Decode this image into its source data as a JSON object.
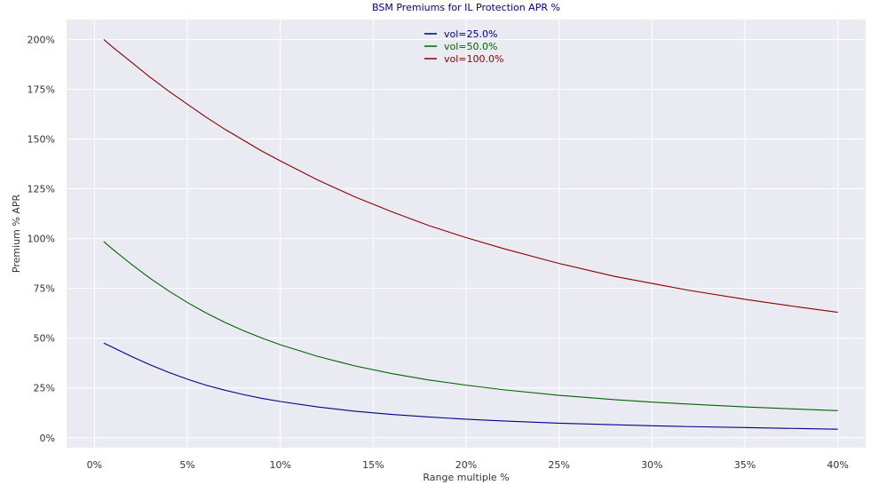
{
  "chart_data": {
    "type": "line",
    "title": "BSM Premiums for IL Protection APR %",
    "title_color": "#00008b",
    "xlabel": "Range multiple %",
    "ylabel": "Premium % APR",
    "xlim": [
      -1.5,
      41.5
    ],
    "ylim": [
      -5,
      210
    ],
    "xticks": [
      0,
      5,
      10,
      15,
      20,
      25,
      30,
      35,
      40
    ],
    "xtick_labels": [
      "0%",
      "5%",
      "10%",
      "15%",
      "20%",
      "25%",
      "30%",
      "35%",
      "40%"
    ],
    "yticks": [
      0,
      25,
      50,
      75,
      100,
      125,
      150,
      175,
      200
    ],
    "ytick_labels": [
      "0%",
      "25%",
      "50%",
      "75%",
      "100%",
      "125%",
      "150%",
      "175%",
      "200%"
    ],
    "grid": true,
    "background": "#eaeaf2",
    "legend_position": "top-center",
    "x": [
      0.5,
      1,
      2,
      3,
      4,
      5,
      6,
      7,
      8,
      9,
      10,
      12,
      14,
      16,
      18,
      20,
      22,
      25,
      28,
      30,
      32,
      35,
      38,
      40
    ],
    "series": [
      {
        "name": "vol=25.0%",
        "color": "#00008b",
        "values": [
          47.5,
          45.3,
          40.8,
          36.6,
          32.8,
          29.4,
          26.4,
          23.9,
          21.7,
          19.8,
          18.2,
          15.5,
          13.3,
          11.7,
          10.4,
          9.3,
          8.4,
          7.3,
          6.5,
          6.0,
          5.6,
          5.1,
          4.6,
          4.3
        ]
      },
      {
        "name": "vol=50.0%",
        "color": "#006400",
        "values": [
          98.5,
          94.5,
          87.0,
          80.0,
          73.7,
          67.9,
          62.7,
          58.0,
          53.8,
          50.1,
          46.7,
          40.9,
          36.1,
          32.2,
          29.0,
          26.4,
          24.1,
          21.3,
          19.1,
          17.9,
          16.9,
          15.5,
          14.3,
          13.6
        ]
      },
      {
        "name": "vol=100.0%",
        "color": "#8b0000",
        "values": [
          200.0,
          196.0,
          188.5,
          181.0,
          174.0,
          167.5,
          161.0,
          155.0,
          149.5,
          144.0,
          139.0,
          129.5,
          121.0,
          113.5,
          106.5,
          100.5,
          95.0,
          87.5,
          81.0,
          77.5,
          74.0,
          69.5,
          65.5,
          63.0
        ]
      }
    ]
  }
}
